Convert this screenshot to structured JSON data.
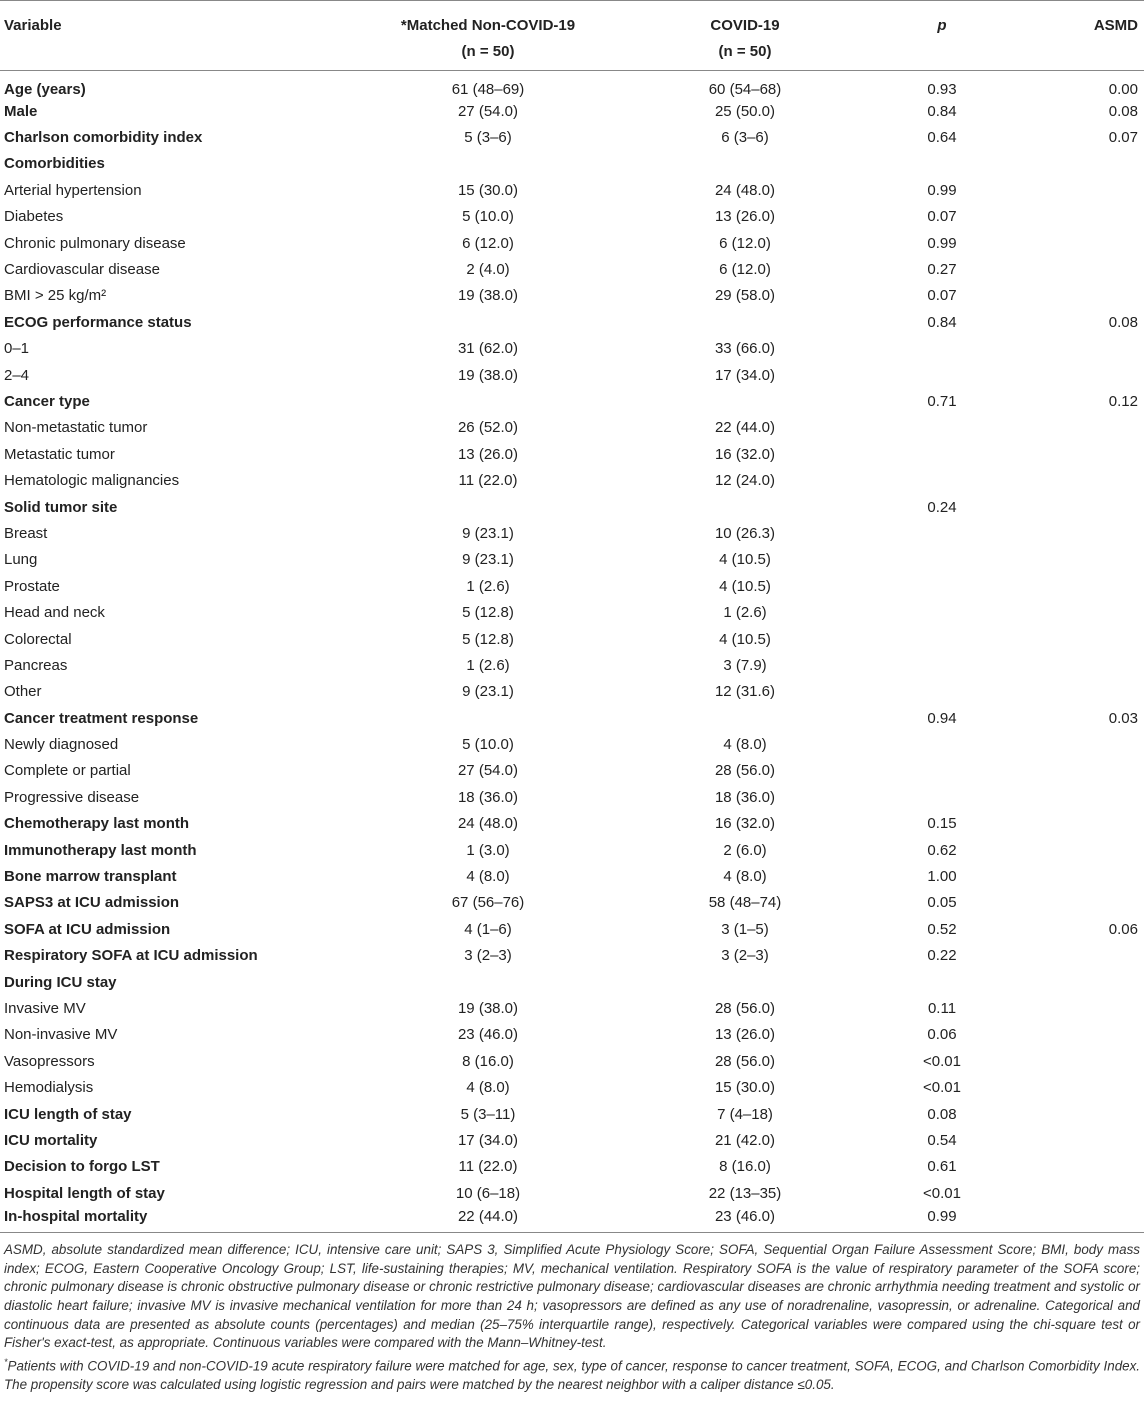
{
  "table": {
    "header": [
      {
        "text": "Variable"
      },
      {
        "text": "*Matched Non-COVID-19",
        "sub": "(n = 50)"
      },
      {
        "text": "COVID-19",
        "sub": "(n = 50)"
      },
      {
        "text": "p"
      },
      {
        "text": "ASMD"
      }
    ],
    "rows": [
      {
        "variable": "Age (years)",
        "bold": true,
        "matched": "61 (48–69)",
        "covid": "60 (54–68)",
        "p": "0.93",
        "asmd": "0.00"
      },
      {
        "variable": "Male",
        "bold": true,
        "matched": "27 (54.0)",
        "covid": "25 (50.0)",
        "p": "0.84",
        "asmd": "0.08"
      },
      {
        "variable": "Charlson comorbidity index",
        "bold": true,
        "matched": "5 (3–6)",
        "covid": "6 (3–6)",
        "p": "0.64",
        "asmd": "0.07"
      },
      {
        "variable": "Comorbidities",
        "bold": true
      },
      {
        "variable": "Arterial hypertension",
        "matched": "15 (30.0)",
        "covid": "24 (48.0)",
        "p": "0.99"
      },
      {
        "variable": "Diabetes",
        "matched": "5 (10.0)",
        "covid": "13 (26.0)",
        "p": "0.07"
      },
      {
        "variable": "Chronic pulmonary disease",
        "matched": "6 (12.0)",
        "covid": "6 (12.0)",
        "p": "0.99"
      },
      {
        "variable": "Cardiovascular disease",
        "matched": "2 (4.0)",
        "covid": "6 (12.0)",
        "p": "0.27"
      },
      {
        "variable": "BMI > 25 kg/m²",
        "matched": "19 (38.0)",
        "covid": "29 (58.0)",
        "p": "0.07"
      },
      {
        "variable": "ECOG performance status",
        "bold": true,
        "p": "0.84",
        "asmd": "0.08"
      },
      {
        "variable": "0–1",
        "matched": "31 (62.0)",
        "covid": "33 (66.0)"
      },
      {
        "variable": "2–4",
        "matched": "19 (38.0)",
        "covid": "17 (34.0)"
      },
      {
        "variable": "Cancer type",
        "bold": true,
        "p": "0.71",
        "asmd": "0.12"
      },
      {
        "variable": "Non-metastatic tumor",
        "matched": "26 (52.0)",
        "covid": "22 (44.0)"
      },
      {
        "variable": "Metastatic tumor",
        "matched": "13 (26.0)",
        "covid": "16 (32.0)"
      },
      {
        "variable": "Hematologic malignancies",
        "matched": "11 (22.0)",
        "covid": "12 (24.0)"
      },
      {
        "variable": "Solid tumor site",
        "bold": true,
        "p": "0.24"
      },
      {
        "variable": "Breast",
        "matched": "9 (23.1)",
        "covid": "10 (26.3)"
      },
      {
        "variable": "Lung",
        "matched": "9 (23.1)",
        "covid": "4 (10.5)"
      },
      {
        "variable": "Prostate",
        "matched": "1 (2.6)",
        "covid": "4 (10.5)"
      },
      {
        "variable": "Head and neck",
        "matched": "5 (12.8)",
        "covid": "1 (2.6)"
      },
      {
        "variable": "Colorectal",
        "matched": "5 (12.8)",
        "covid": "4 (10.5)"
      },
      {
        "variable": "Pancreas",
        "matched": "1 (2.6)",
        "covid": "3 (7.9)"
      },
      {
        "variable": "Other",
        "matched": "9 (23.1)",
        "covid": "12 (31.6)"
      },
      {
        "variable": "Cancer treatment response",
        "bold": true,
        "p": "0.94",
        "asmd": "0.03"
      },
      {
        "variable": "Newly diagnosed",
        "matched": "5 (10.0)",
        "covid": "4 (8.0)"
      },
      {
        "variable": "Complete or partial",
        "matched": "27 (54.0)",
        "covid": "28 (56.0)"
      },
      {
        "variable": "Progressive disease",
        "matched": "18 (36.0)",
        "covid": "18 (36.0)"
      },
      {
        "variable": "Chemotherapy last month",
        "bold": true,
        "matched": "24 (48.0)",
        "covid": "16 (32.0)",
        "p": "0.15"
      },
      {
        "variable": "Immunotherapy last month",
        "bold": true,
        "matched": "1 (3.0)",
        "covid": "2 (6.0)",
        "p": "0.62"
      },
      {
        "variable": "Bone marrow transplant",
        "bold": true,
        "matched": "4 (8.0)",
        "covid": "4 (8.0)",
        "p": "1.00"
      },
      {
        "variable": "SAPS3 at ICU admission",
        "bold": true,
        "matched": "67 (56–76)",
        "covid": "58 (48–74)",
        "p": "0.05"
      },
      {
        "variable": "SOFA at ICU admission",
        "bold": true,
        "matched": "4 (1–6)",
        "covid": "3 (1–5)",
        "p": "0.52",
        "asmd": "0.06"
      },
      {
        "variable": "Respiratory SOFA at ICU admission",
        "bold": true,
        "matched": "3 (2–3)",
        "covid": "3 (2–3)",
        "p": "0.22"
      },
      {
        "variable": "During ICU stay",
        "bold": true
      },
      {
        "variable": "Invasive MV",
        "matched": "19 (38.0)",
        "covid": "28 (56.0)",
        "p": "0.11"
      },
      {
        "variable": "Non-invasive MV",
        "matched": "23 (46.0)",
        "covid": "13 (26.0)",
        "p": "0.06"
      },
      {
        "variable": "Vasopressors",
        "matched": "8 (16.0)",
        "covid": "28 (56.0)",
        "p": "<0.01"
      },
      {
        "variable": "Hemodialysis",
        "matched": "4 (8.0)",
        "covid": "15 (30.0)",
        "p": "<0.01"
      },
      {
        "variable": "ICU length of stay",
        "bold": true,
        "matched": "5 (3–11)",
        "covid": "7 (4–18)",
        "p": "0.08"
      },
      {
        "variable": "ICU mortality",
        "bold": true,
        "matched": "17 (34.0)",
        "covid": "21 (42.0)",
        "p": "0.54"
      },
      {
        "variable": "Decision to forgo LST",
        "bold": true,
        "matched": "11 (22.0)",
        "covid": "8 (16.0)",
        "p": "0.61"
      },
      {
        "variable": "Hospital length of stay",
        "bold": true,
        "matched": "10 (6–18)",
        "covid": "22 (13–35)",
        "p": "<0.01"
      },
      {
        "variable": "In-hospital mortality",
        "bold": true,
        "matched": "22 (44.0)",
        "covid": "23 (46.0)",
        "p": "0.99"
      }
    ]
  },
  "notes": {
    "abbreviations": "ASMD, absolute standardized mean difference; ICU, intensive care unit; SAPS 3, Simplified Acute Physiology Score; SOFA, Sequential Organ Failure Assessment Score; BMI, body mass index; ECOG, Eastern Cooperative Oncology Group; LST, life-sustaining therapies; MV, mechanical ventilation. Respiratory SOFA is the value of respiratory parameter of the SOFA score; chronic pulmonary disease is chronic obstructive pulmonary disease or chronic restrictive pulmonary disease; cardiovascular diseases are chronic arrhythmia needing treatment and systolic or diastolic heart failure; invasive MV is invasive mechanical ventilation for more than 24 h; vasopressors are defined as any use of noradrenaline, vasopressin, or adrenaline. Categorical and continuous data are presented as absolute counts (percentages) and median (25–75% interquartile range), respectively. Categorical variables were compared using the chi-square test or Fisher's exact-test, as appropriate. Continuous variables were compared with the Mann–Whitney-test.",
    "matching_mark": "*",
    "matching": "Patients with COVID-19 and non-COVID-19 acute respiratory failure were matched for age, sex, type of cancer, response to cancer treatment, SOFA, ECOG, and Charlson Comorbidity Index. The propensity score was calculated using logistic regression and pairs were matched by the nearest neighbor with a caliper distance ≤0.05."
  }
}
